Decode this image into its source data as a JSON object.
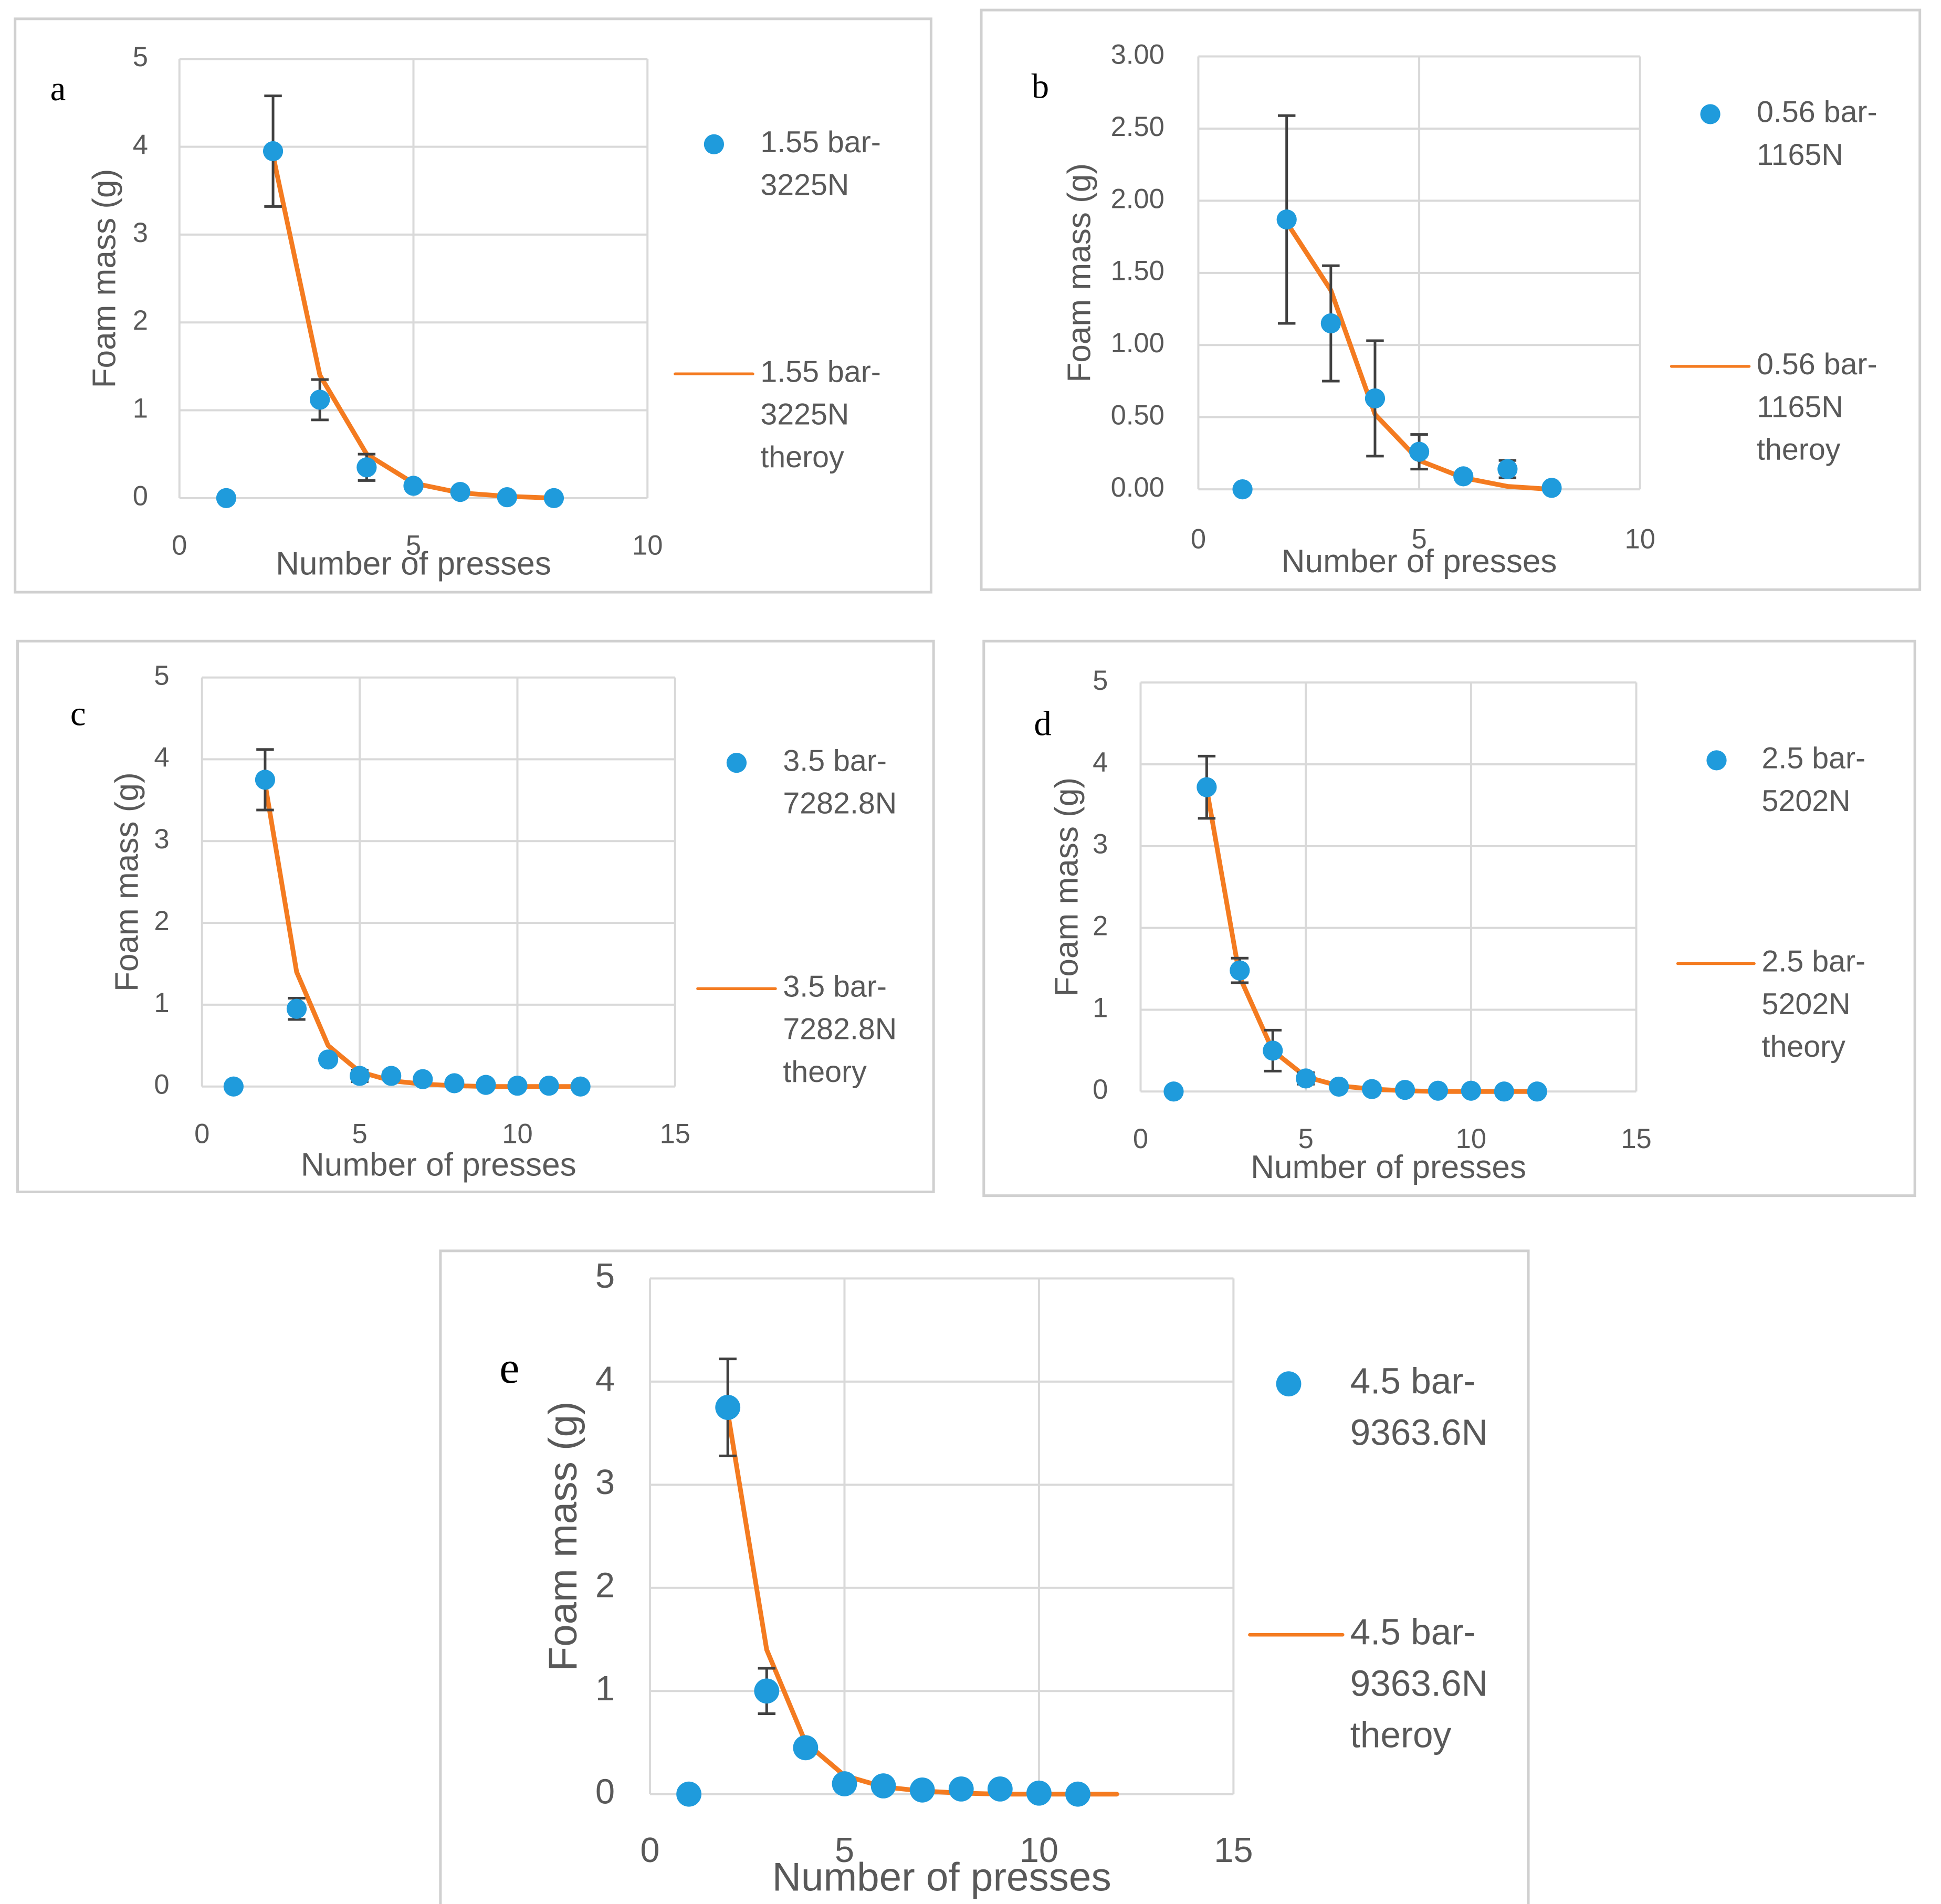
{
  "colors": {
    "marker": "#1f9bdc",
    "theory": "#f47b20",
    "grid": "#d9d9d9",
    "text": "#595959"
  },
  "chart_data": [
    {
      "type": "scatter",
      "panel_label": "a",
      "xlabel": "Number of presses",
      "ylabel": "Foam mass (g)",
      "xlim": [
        0,
        10
      ],
      "ylim": [
        0,
        5
      ],
      "x_ticks": [
        "0",
        "5",
        "10"
      ],
      "y_ticks": [
        "0",
        "1",
        "2",
        "3",
        "4",
        "5"
      ],
      "grid": true,
      "legend_position": "right",
      "series": [
        {
          "name": "1.55 bar-3225N",
          "legend_lines": [
            "1.55 bar-",
            "3225N"
          ],
          "kind": "markers",
          "x": [
            1,
            2,
            3,
            4,
            5,
            6,
            7,
            8
          ],
          "y": [
            0,
            3.95,
            1.12,
            0.35,
            0.14,
            0.07,
            0.01,
            0.0
          ],
          "error": [
            0,
            0.63,
            0.23,
            0.15,
            0,
            0,
            0,
            0
          ]
        },
        {
          "name": "1.55 bar-3225N theroy",
          "legend_lines": [
            "1.55 bar-",
            "3225N",
            "theroy"
          ],
          "kind": "line",
          "x": [
            2,
            3,
            4,
            5,
            6,
            7,
            8
          ],
          "y": [
            3.9,
            1.4,
            0.5,
            0.17,
            0.06,
            0.02,
            0.0
          ]
        }
      ]
    },
    {
      "type": "scatter",
      "panel_label": "b",
      "xlabel": "Number of presses",
      "ylabel": "Foam mass (g)",
      "xlim": [
        0,
        10
      ],
      "ylim": [
        0,
        3
      ],
      "x_ticks": [
        "0",
        "5",
        "10"
      ],
      "y_ticks": [
        "0.00",
        "0.50",
        "1.00",
        "1.50",
        "2.00",
        "2.50",
        "3.00"
      ],
      "grid": true,
      "legend_position": "right",
      "series": [
        {
          "name": "0.56 bar-1165N",
          "legend_lines": [
            "0.56 bar-",
            "1165N"
          ],
          "kind": "markers",
          "x": [
            1,
            2,
            3,
            4,
            5,
            6,
            7,
            8
          ],
          "y": [
            0,
            1.87,
            1.15,
            0.63,
            0.26,
            0.09,
            0.14,
            0.01
          ],
          "error": [
            0,
            0.72,
            0.4,
            0.4,
            0.12,
            0,
            0.06,
            0
          ]
        },
        {
          "name": "0.56 bar-1165N theroy",
          "legend_lines": [
            "0.56 bar-",
            "1165N",
            "theroy"
          ],
          "kind": "line",
          "x": [
            2,
            3,
            4,
            5,
            6,
            7,
            8
          ],
          "y": [
            1.85,
            1.38,
            0.52,
            0.2,
            0.08,
            0.02,
            0.0
          ]
        }
      ]
    },
    {
      "type": "scatter",
      "panel_label": "c",
      "xlabel": "Number of presses",
      "ylabel": "Foam mass (g)",
      "xlim": [
        0,
        15
      ],
      "ylim": [
        0,
        5
      ],
      "x_ticks": [
        "0",
        "5",
        "10",
        "15"
      ],
      "y_ticks": [
        "0",
        "1",
        "2",
        "3",
        "4",
        "5"
      ],
      "grid": true,
      "legend_position": "right",
      "series": [
        {
          "name": "3.5 bar-7282.8N",
          "legend_lines": [
            "3.5 bar-",
            "7282.8N"
          ],
          "kind": "markers",
          "x": [
            1,
            2,
            3,
            4,
            5,
            6,
            7,
            8,
            9,
            10,
            11,
            12
          ],
          "y": [
            0,
            3.75,
            0.95,
            0.33,
            0.13,
            0.13,
            0.09,
            0.04,
            0.02,
            0.01,
            0.01,
            0.0
          ],
          "error": [
            0,
            0.37,
            0.13,
            0,
            0.07,
            0.05,
            0,
            0,
            0,
            0,
            0,
            0
          ]
        },
        {
          "name": "3.5 bar-7282.8N theory",
          "legend_lines": [
            "3.5 bar-",
            "7282.8N",
            "theory"
          ],
          "kind": "line",
          "x": [
            2,
            3,
            4,
            5,
            6,
            7,
            8,
            9,
            10,
            11,
            12
          ],
          "y": [
            3.7,
            1.4,
            0.5,
            0.18,
            0.07,
            0.03,
            0.01,
            0.0,
            0.0,
            0.0,
            0.0
          ]
        }
      ]
    },
    {
      "type": "scatter",
      "panel_label": "d",
      "xlabel": "Number of presses",
      "ylabel": "Foam mass (g)",
      "xlim": [
        0,
        15
      ],
      "ylim": [
        0,
        5
      ],
      "x_ticks": [
        "0",
        "5",
        "10",
        "15"
      ],
      "y_ticks": [
        "0",
        "1",
        "2",
        "3",
        "4",
        "5"
      ],
      "grid": true,
      "legend_position": "right",
      "series": [
        {
          "name": "2.5 bar-5202N",
          "legend_lines": [
            "2.5 bar-",
            "5202N"
          ],
          "kind": "markers",
          "x": [
            1,
            2,
            3,
            4,
            5,
            6,
            7,
            8,
            9,
            10,
            11,
            12
          ],
          "y": [
            0,
            3.72,
            1.48,
            0.5,
            0.16,
            0.06,
            0.03,
            0.02,
            0.01,
            0.01,
            0.0,
            0.0
          ],
          "error": [
            0,
            0.38,
            0.15,
            0.25,
            0.07,
            0,
            0,
            0,
            0,
            0,
            0,
            0
          ]
        },
        {
          "name": "2.5 bar-5202N theory",
          "legend_lines": [
            "2.5 bar-",
            "5202N",
            "theory"
          ],
          "kind": "line",
          "x": [
            2,
            3,
            4,
            5,
            6,
            7,
            8,
            9,
            10,
            11,
            12
          ],
          "y": [
            3.7,
            1.4,
            0.5,
            0.18,
            0.07,
            0.03,
            0.01,
            0.0,
            0.0,
            0.0,
            0.0
          ]
        }
      ]
    },
    {
      "type": "scatter",
      "panel_label": "e",
      "xlabel": "Number of presses",
      "ylabel": "Foam mass (g)",
      "xlim": [
        0,
        15
      ],
      "ylim": [
        0,
        5
      ],
      "x_ticks": [
        "0",
        "5",
        "10",
        "15"
      ],
      "y_ticks": [
        "0",
        "1",
        "2",
        "3",
        "4",
        "5"
      ],
      "grid": true,
      "legend_position": "right",
      "series": [
        {
          "name": "4.5 bar-9363.6N",
          "legend_lines": [
            "4.5 bar-",
            "9363.6N"
          ],
          "kind": "markers",
          "x": [
            1,
            2,
            3,
            4,
            5,
            6,
            7,
            8,
            9,
            10,
            11
          ],
          "y": [
            0,
            3.75,
            1.0,
            0.45,
            0.1,
            0.08,
            0.04,
            0.05,
            0.05,
            0.01,
            0.0
          ],
          "error": [
            0,
            0.47,
            0.22,
            0,
            0,
            0,
            0,
            0,
            0,
            0,
            0
          ]
        },
        {
          "name": "4.5 bar-9363.6N theroy",
          "legend_lines": [
            "4.5 bar-",
            "9363.6N",
            "theroy"
          ],
          "kind": "line",
          "x": [
            2,
            3,
            4,
            5,
            6,
            7,
            8,
            9,
            10,
            11,
            12
          ],
          "y": [
            3.7,
            1.4,
            0.5,
            0.18,
            0.07,
            0.03,
            0.01,
            0.0,
            0.0,
            0.0,
            0.0
          ]
        }
      ]
    }
  ]
}
